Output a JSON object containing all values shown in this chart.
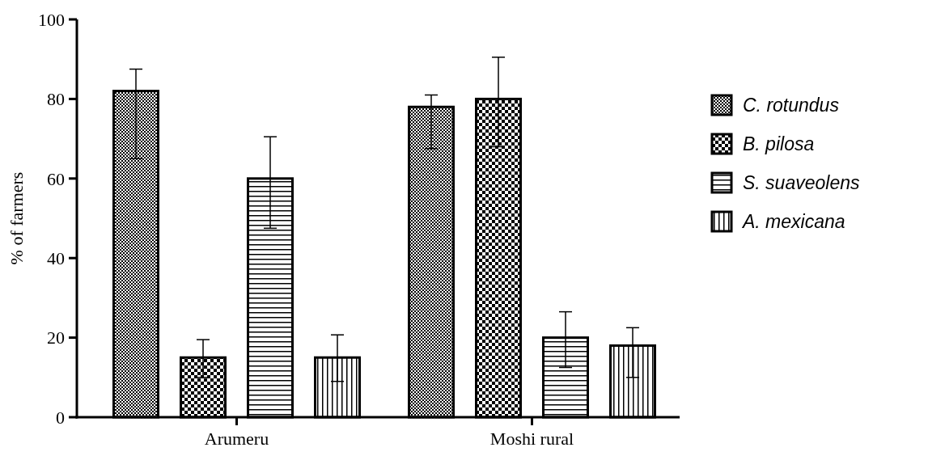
{
  "chart_data": {
    "type": "bar",
    "ylabel": "% of farmers",
    "categories": [
      "Arumeru",
      "Moshi rural"
    ],
    "series": [
      {
        "name": "C. rotundus",
        "color": "#000000",
        "values": [
          82,
          78
        ],
        "errors": [
          [
            65,
            87.5
          ],
          [
            67.5,
            81
          ]
        ]
      },
      {
        "name": "B. pilosa",
        "color": "#000000",
        "values": [
          15,
          80
        ],
        "errors": [
          [
            10,
            19.5
          ],
          [
            68,
            90.5
          ]
        ]
      },
      {
        "name": "S. suaveolens",
        "color": "#000000",
        "values": [
          60,
          20
        ],
        "errors": [
          [
            47.5,
            70.5
          ],
          [
            12.5,
            26.5
          ]
        ]
      },
      {
        "name": "A. mexicana",
        "color": "#000000",
        "values": [
          15,
          18
        ],
        "errors": [
          [
            9,
            20.7
          ],
          [
            10,
            22.5
          ]
        ]
      }
    ],
    "ylim": [
      0,
      100
    ],
    "yticks": [
      0,
      20,
      40,
      60,
      80,
      100
    ],
    "legend": "right",
    "grid": false
  }
}
